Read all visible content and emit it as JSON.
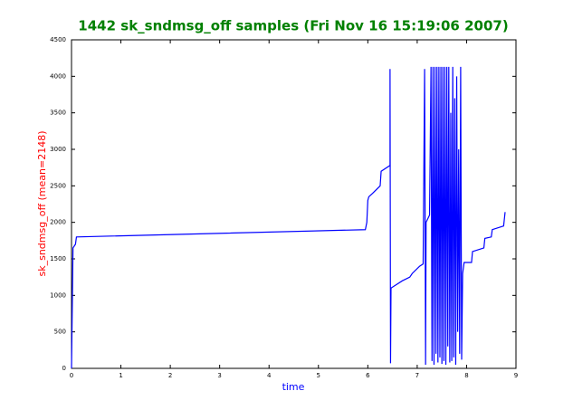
{
  "chart_data": {
    "type": "line",
    "title": "1442 sk_sndmsg_off samples (Fri Nov 16 15:19:06 2007)",
    "xlabel": "time",
    "ylabel": "sk_sndmsg_off (mean=2148)",
    "title_color": "#008000",
    "xlabel_color": "#0000ff",
    "ylabel_color": "#ff0000",
    "color": "#0000ff",
    "x": [
      0,
      0.03,
      0.08,
      0.1,
      5.95,
      5.98,
      6.0,
      6.02,
      6.1,
      6.25,
      6.27,
      6.45,
      6.45,
      6.46,
      6.47,
      6.7,
      6.85,
      6.9,
      7.05,
      7.12,
      7.15,
      7.17,
      7.18,
      7.25,
      7.28,
      7.3,
      7.32,
      7.34,
      7.36,
      7.38,
      7.4,
      7.42,
      7.44,
      7.46,
      7.48,
      7.5,
      7.52,
      7.54,
      7.56,
      7.58,
      7.6,
      7.62,
      7.64,
      7.66,
      7.68,
      7.7,
      7.72,
      7.74,
      7.76,
      7.78,
      7.8,
      7.82,
      7.84,
      7.86,
      7.88,
      7.9,
      7.92,
      7.95,
      8.1,
      8.12,
      8.35,
      8.37,
      8.5,
      8.52,
      8.75,
      8.78
    ],
    "values": [
      0,
      1650,
      1700,
      1800,
      1900,
      2000,
      2300,
      2350,
      2400,
      2500,
      2700,
      2780,
      4100,
      70,
      1100,
      1200,
      1250,
      1300,
      1400,
      1430,
      4100,
      50,
      2000,
      2100,
      4130,
      100,
      4130,
      50,
      4130,
      200,
      4130,
      80,
      4130,
      150,
      4130,
      60,
      4130,
      100,
      4130,
      50,
      4130,
      300,
      4130,
      80,
      3500,
      100,
      4130,
      150,
      3700,
      50,
      4000,
      500,
      3000,
      200,
      4130,
      120,
      1300,
      1450,
      1450,
      1600,
      1650,
      1780,
      1800,
      1900,
      1950,
      2140
    ],
    "xlim": [
      0,
      9
    ],
    "xticks": [
      0,
      1,
      2,
      3,
      4,
      5,
      6,
      7,
      8,
      9
    ],
    "ylim": [
      0,
      4500
    ],
    "yticks": [
      0,
      500,
      1000,
      1500,
      2000,
      2500,
      3000,
      3500,
      4000,
      4500
    ]
  }
}
